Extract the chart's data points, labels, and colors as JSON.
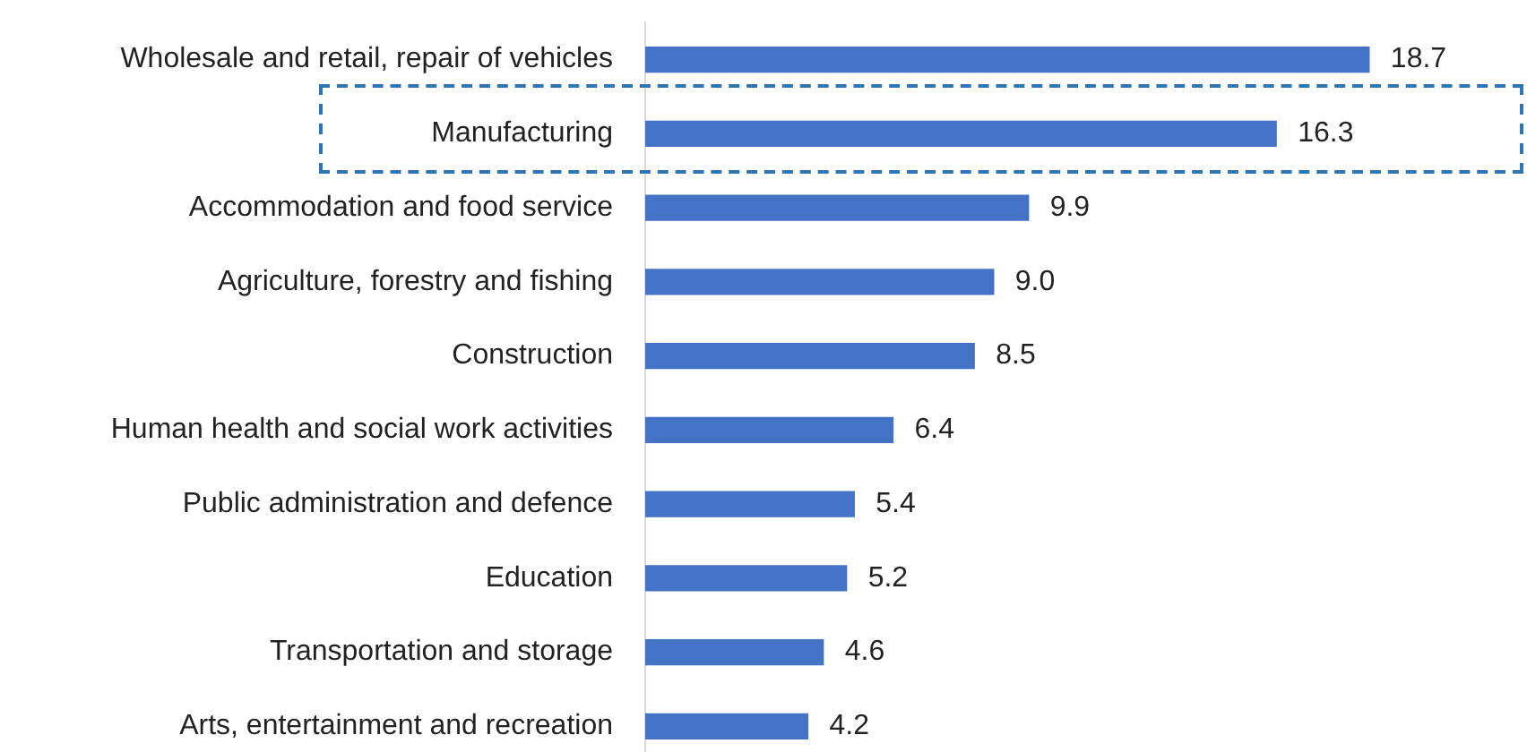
{
  "chart_data": {
    "type": "bar",
    "orientation": "horizontal",
    "categories": [
      "Wholesale and retail, repair of vehicles",
      "Manufacturing",
      "Accommodation and food service",
      "Agriculture, forestry and fishing",
      "Construction",
      "Human health and social work activities",
      "Public administration and defence",
      "Education",
      "Transportation and storage",
      "Arts, entertainment and recreation"
    ],
    "values": [
      18.7,
      16.3,
      9.9,
      9.0,
      8.5,
      6.4,
      5.4,
      5.2,
      4.6,
      4.2
    ],
    "value_labels": [
      "18.7",
      "16.3",
      "9.9",
      "9.0",
      "8.5",
      "6.4",
      "5.4",
      "5.2",
      "4.6",
      "4.2"
    ],
    "color": "#4472c4",
    "grid": false,
    "legend": false,
    "tick_labels": "y"
  }
}
